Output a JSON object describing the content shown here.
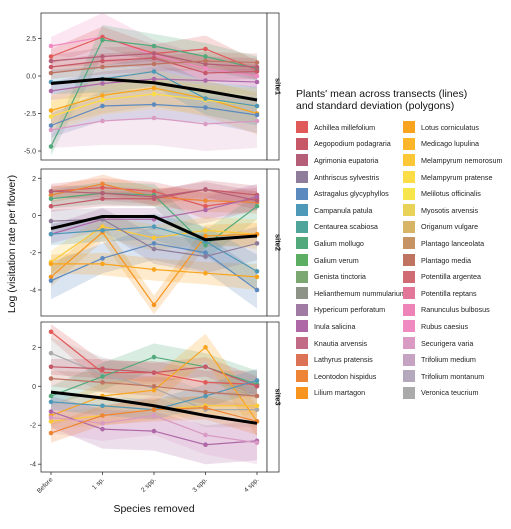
{
  "chart_data": {
    "type": "line",
    "ylabel": "Log (visitation rate per flower)",
    "xlabel": "Species removed",
    "x_categories": [
      "Before",
      "1 sp.",
      "2 spp.",
      "3 spp.",
      "4 spp."
    ],
    "legend": {
      "title_line1": "Plants' mean across transects (lines)",
      "title_line2": "and standard deviation (polygons)",
      "items": [
        {
          "label": "Achillea millefolium",
          "color": "#E05A5A"
        },
        {
          "label": "Aegopodium podagraria",
          "color": "#C65867"
        },
        {
          "label": "Agrimonia eupatoria",
          "color": "#B45E78"
        },
        {
          "label": "Anthriscus sylvestris",
          "color": "#8E7C9A"
        },
        {
          "label": "Astragalus glycyphyllos",
          "color": "#5C8ABF"
        },
        {
          "label": "Campanula patula",
          "color": "#4E98B8"
        },
        {
          "label": "Centaurea scabiosa",
          "color": "#4FA59A"
        },
        {
          "label": "Galium mollugo",
          "color": "#52A97C"
        },
        {
          "label": "Galium verum",
          "color": "#5CAE63"
        },
        {
          "label": "Genista tinctoria",
          "color": "#7BA771"
        },
        {
          "label": "Helianthemum nummularium",
          "color": "#8D9386"
        },
        {
          "label": "Hypericum perforatum",
          "color": "#A07CA4"
        },
        {
          "label": "Inula salicina",
          "color": "#AE68A8"
        },
        {
          "label": "Knautia arvensis",
          "color": "#C26B86"
        },
        {
          "label": "Lathyrus pratensis",
          "color": "#DC7356"
        },
        {
          "label": "Leontodon hispidus",
          "color": "#EE8435"
        },
        {
          "label": "Lilium martagon",
          "color": "#F7951E"
        },
        {
          "label": "Lotus corniculatus",
          "color": "#F9A41C"
        },
        {
          "label": "Medicago lupulina",
          "color": "#FBB62A"
        },
        {
          "label": "Melampyrum nemorosum",
          "color": "#FCC838"
        },
        {
          "label": "Melampyrum pratense",
          "color": "#FDDD46"
        },
        {
          "label": "Melilotus officinalis",
          "color": "#F6E64C"
        },
        {
          "label": "Myosotis arvensis",
          "color": "#E8D258"
        },
        {
          "label": "Origanum vulgare",
          "color": "#D8B466"
        },
        {
          "label": "Plantago lanceolata",
          "color": "#C69364"
        },
        {
          "label": "Plantago media",
          "color": "#BE7460"
        },
        {
          "label": "Potentilla argentea",
          "color": "#D16B73"
        },
        {
          "label": "Potentilla reptans",
          "color": "#E2779A"
        },
        {
          "label": "Ranunculus bulbosus",
          "color": "#EE83B8"
        },
        {
          "label": "Rubus caesius",
          "color": "#F08BC2"
        },
        {
          "label": "Securigera varia",
          "color": "#D99AC3"
        },
        {
          "label": "Trifolium medium",
          "color": "#C6A3C2"
        },
        {
          "label": "Trifolium montanum",
          "color": "#B4A8BC"
        },
        {
          "label": "Veronica teucrium",
          "color": "#AAAAAA"
        }
      ]
    },
    "mean_line_color": "#000000",
    "panels": [
      {
        "strip": "site1",
        "ylim": [
          -5.6,
          4.2
        ],
        "yticks": [
          -5.0,
          -2.5,
          0.0,
          2.5
        ],
        "ytick_labels": [
          "-5.0",
          "-2.5",
          "0.0",
          "2.5"
        ],
        "mean": [
          -0.5,
          -0.2,
          -0.45,
          -1.0,
          -1.6
        ],
        "series": [
          {
            "color": "#F08BC2",
            "values": [
              2.0,
              2.6,
              1.4,
              0.5,
              0.0
            ],
            "band": [
              0.6,
              1.6,
              1.0,
              0.8,
              0.8
            ]
          },
          {
            "color": "#E05A5A",
            "values": [
              1.3,
              2.6,
              1.5,
              1.8,
              0.4
            ],
            "band": [
              0.5,
              0.7,
              0.6,
              0.9,
              0.6
            ]
          },
          {
            "color": "#52A97C",
            "values": [
              -4.7,
              2.4,
              2.0,
              1.3,
              0.5
            ],
            "band": [
              0.6,
              1.0,
              0.8,
              0.9,
              0.8
            ]
          },
          {
            "color": "#B45E78",
            "values": [
              1.0,
              1.3,
              1.5,
              0.8,
              0.6
            ],
            "band": [
              0.4,
              0.6,
              0.5,
              0.5,
              0.6
            ]
          },
          {
            "color": "#C65867",
            "values": [
              0.6,
              1.0,
              1.2,
              0.2,
              0.3
            ],
            "band": [
              0.4,
              0.5,
              0.5,
              0.5,
              0.5
            ]
          },
          {
            "color": "#AE68A8",
            "values": [
              -1.0,
              -0.5,
              -0.2,
              -0.3,
              -0.4
            ],
            "band": [
              0.6,
              0.8,
              0.8,
              0.7,
              0.9
            ]
          },
          {
            "color": "#F9A41C",
            "values": [
              -2.3,
              -1.3,
              -0.8,
              -1.5,
              -2.5
            ],
            "band": [
              1.0,
              1.2,
              1.2,
              1.2,
              1.4
            ]
          },
          {
            "color": "#5C8ABF",
            "values": [
              -3.3,
              -2.0,
              -1.9,
              -2.1,
              -2.6
            ],
            "band": [
              0.8,
              1.0,
              1.0,
              1.0,
              1.2
            ]
          },
          {
            "color": "#FDDD46",
            "values": [
              -2.7,
              -1.6,
              -1.2,
              -1.6,
              -2.0
            ],
            "band": [
              1.0,
              1.0,
              1.0,
              1.0,
              1.2
            ]
          },
          {
            "color": "#D99AC3",
            "values": [
              -3.6,
              -3.0,
              -2.8,
              -3.2,
              -3.0
            ],
            "band": [
              1.2,
              1.6,
              1.8,
              1.8,
              1.8
            ]
          },
          {
            "color": "#4E98B8",
            "values": [
              -0.4,
              -0.2,
              0.3,
              -1.5,
              -2.0
            ],
            "band": [
              0.8,
              0.9,
              1.0,
              1.1,
              1.3
            ]
          },
          {
            "color": "#BE7460",
            "values": [
              0.2,
              0.6,
              0.8,
              1.0,
              0.9
            ],
            "band": [
              0.4,
              0.5,
              0.5,
              0.6,
              0.6
            ]
          }
        ]
      },
      {
        "strip": "site2",
        "ylim": [
          -5.4,
          2.5
        ],
        "yticks": [
          -4,
          -2,
          0,
          2
        ],
        "ytick_labels": [
          "-4",
          "-2",
          "0",
          "2"
        ],
        "mean": [
          -0.7,
          -0.05,
          -0.05,
          -1.3,
          -1.1
        ],
        "series": [
          {
            "color": "#E05A5A",
            "values": [
              1.3,
              1.5,
              1.3,
              0.5,
              0.9
            ],
            "band": [
              0.4,
              0.5,
              0.5,
              0.7,
              0.6
            ]
          },
          {
            "color": "#EE8435",
            "values": [
              1.1,
              1.7,
              1.0,
              0.8,
              0.7
            ],
            "band": [
              0.4,
              0.5,
              0.5,
              0.6,
              0.6
            ]
          },
          {
            "color": "#52A97C",
            "values": [
              0.9,
              1.2,
              1.1,
              -1.6,
              0.5
            ],
            "band": [
              0.5,
              0.6,
              0.6,
              0.8,
              0.7
            ]
          },
          {
            "color": "#C65867",
            "values": [
              0.5,
              0.9,
              0.9,
              1.4,
              1.1
            ],
            "band": [
              0.3,
              0.4,
              0.4,
              0.5,
              0.5
            ]
          },
          {
            "color": "#AE68A8",
            "values": [
              -1.0,
              -0.2,
              -0.2,
              0.3,
              1.0
            ],
            "band": [
              0.5,
              0.6,
              0.6,
              0.7,
              0.7
            ]
          },
          {
            "color": "#FCC838",
            "values": [
              -2.5,
              -0.6,
              -1.2,
              -0.8,
              -1.0
            ],
            "band": [
              0.6,
              0.6,
              0.7,
              0.7,
              0.8
            ]
          },
          {
            "color": "#F7951E",
            "values": [
              -3.3,
              -0.9,
              -4.8,
              -1.1,
              -1.0
            ],
            "band": [
              0.5,
              0.5,
              0.5,
              0.6,
              0.6
            ]
          },
          {
            "color": "#5C8ABF",
            "values": [
              -3.5,
              -2.3,
              -1.5,
              -2.0,
              -4.0
            ],
            "band": [
              1.0,
              0.8,
              0.9,
              1.0,
              1.0
            ]
          },
          {
            "color": "#F9A41C",
            "values": [
              -2.6,
              -2.6,
              -2.9,
              -3.1,
              -3.3
            ],
            "band": [
              0.5,
              0.6,
              0.6,
              0.6,
              0.7
            ]
          },
          {
            "color": "#4E98B8",
            "values": [
              -1.0,
              -0.8,
              -0.6,
              -1.4,
              -3.0
            ],
            "band": [
              0.6,
              0.6,
              0.7,
              0.8,
              0.9
            ]
          },
          {
            "color": "#8E7C9A",
            "values": [
              -0.3,
              -0.2,
              -1.8,
              -2.2,
              -1.5
            ],
            "band": [
              0.6,
              0.6,
              0.8,
              0.9,
              0.9
            ]
          },
          {
            "color": "#B45E78",
            "values": [
              1.3,
              1.2,
              1.0,
              1.4,
              0.8
            ],
            "band": [
              0.3,
              0.4,
              0.4,
              0.4,
              0.5
            ]
          }
        ]
      },
      {
        "strip": "site3",
        "ylim": [
          -4.4,
          3.3
        ],
        "yticks": [
          -4,
          -2,
          0,
          2
        ],
        "ytick_labels": [
          "-4",
          "-2",
          "0",
          "2"
        ],
        "mean": [
          -0.3,
          -0.6,
          -1.0,
          -1.5,
          -1.9
        ],
        "series": [
          {
            "color": "#E05A5A",
            "values": [
              2.8,
              0.7,
              0.7,
              0.2,
              0.1
            ],
            "band": [
              0.4,
              0.6,
              0.6,
              0.6,
              0.7
            ]
          },
          {
            "color": "#AAAAAA",
            "values": [
              1.7,
              0.6,
              -0.1,
              -1.2,
              -1.2
            ],
            "band": [
              0.8,
              0.9,
              0.9,
              0.9,
              0.9
            ]
          },
          {
            "color": "#52A97C",
            "values": [
              -0.5,
              0.5,
              1.5,
              1.0,
              0.1
            ],
            "band": [
              0.5,
              0.7,
              0.7,
              0.7,
              0.7
            ]
          },
          {
            "color": "#C65867",
            "values": [
              1.0,
              0.9,
              0.7,
              1.0,
              0.0
            ],
            "band": [
              0.4,
              0.5,
              0.5,
              0.5,
              0.5
            ]
          },
          {
            "color": "#F9A41C",
            "values": [
              -1.5,
              -0.5,
              -0.2,
              2.0,
              -1.8
            ],
            "band": [
              0.5,
              0.7,
              0.7,
              0.7,
              0.8
            ]
          },
          {
            "color": "#FCC838",
            "values": [
              -1.8,
              -1.5,
              -1.2,
              -1.0,
              -1.0
            ],
            "band": [
              0.4,
              0.5,
              0.5,
              0.5,
              0.5
            ]
          },
          {
            "color": "#AE68A8",
            "values": [
              -1.3,
              -2.2,
              -2.3,
              -3.0,
              -2.8
            ],
            "band": [
              0.8,
              1.0,
              1.0,
              1.0,
              1.0
            ]
          },
          {
            "color": "#D99AC3",
            "values": [
              -1.6,
              -1.9,
              -1.5,
              -2.5,
              -2.9
            ],
            "band": [
              0.8,
              0.9,
              1.0,
              1.0,
              1.1
            ]
          },
          {
            "color": "#4E98B8",
            "values": [
              -0.8,
              -1.0,
              -1.2,
              -0.5,
              0.3
            ],
            "band": [
              0.4,
              0.5,
              0.5,
              0.6,
              0.6
            ]
          },
          {
            "color": "#EE8435",
            "values": [
              -2.4,
              -1.5,
              -1.2,
              -1.1,
              -1.8
            ],
            "band": [
              0.5,
              0.5,
              0.6,
              0.6,
              0.7
            ]
          },
          {
            "color": "#BE7460",
            "values": [
              0.4,
              0.2,
              0.0,
              -0.3,
              -0.5
            ],
            "band": [
              0.4,
              0.5,
              0.5,
              0.6,
              0.6
            ]
          }
        ]
      }
    ]
  }
}
